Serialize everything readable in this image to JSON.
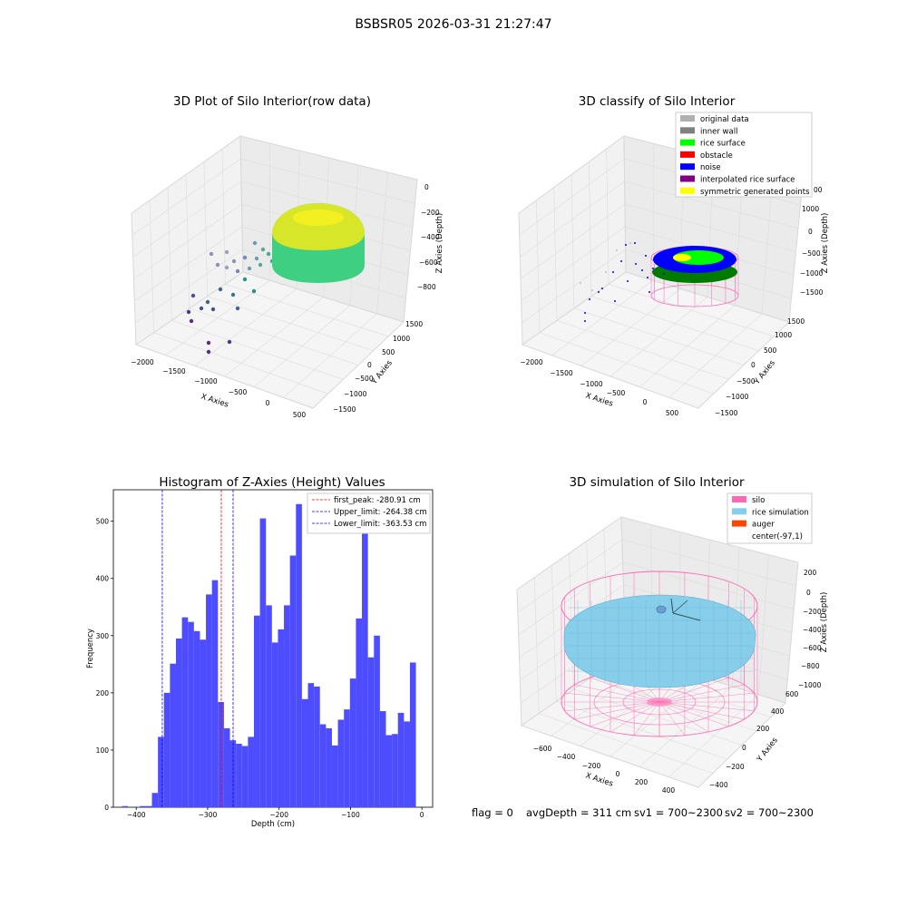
{
  "figure": {
    "suptitle": "BSBSR05 2026-03-31 21:27:47",
    "footer": {
      "flag": "flag = 0",
      "avg_depth": "avgDepth = 311 cm",
      "sv1": "sv1 = 700~2300",
      "sv2": "sv2 = 700~2300"
    }
  },
  "colors": {
    "histogram": "#4d4dff",
    "peak_line": "#ff0000",
    "limit_line": "#0000ff",
    "silo": "#ff69b4",
    "rice_sim": "#87ceeb",
    "auger": "#ff4500",
    "inner_wall": "#808080",
    "original": "#b0b0b0",
    "rice_surface": "#00ff00",
    "obstacle": "#ff0000",
    "noise": "#0000ff",
    "interp": "#800080",
    "symmetric": "#ffff00"
  },
  "chart_data": [
    {
      "type": "scatter",
      "title": "3D Plot of Silo Interior(row data)",
      "xlabel": "X Axies",
      "ylabel": "Y Axies",
      "zlabel": "Z Axies (Depth)",
      "x_ticks": [
        "−2000",
        "−1500",
        "−1000",
        "−500",
        "0",
        "500"
      ],
      "y_ticks": [
        "−1500",
        "−1000",
        "−500",
        "0",
        "500",
        "1000",
        "1500"
      ],
      "z_ticks": [
        "0",
        "−200",
        "−400",
        "−600",
        "−800"
      ]
    },
    {
      "type": "scatter",
      "title": "3D classify of Silo Interior",
      "xlabel": "X Axies",
      "ylabel": "Y Axies",
      "zlabel": "Z Axies (Depth)",
      "x_ticks": [
        "−2000",
        "−1500",
        "−1000",
        "−500",
        "0",
        "500"
      ],
      "y_ticks": [
        "−1500",
        "−1000",
        "−500",
        "0",
        "500",
        "1000",
        "1500"
      ],
      "z_ticks": [
        "1000",
        "500",
        "0",
        "−500",
        "−1000",
        "−1500"
      ],
      "z_tick_partial": "00",
      "legend": [
        {
          "label": "original data",
          "color": "#b0b0b0"
        },
        {
          "label": "inner wall",
          "color": "#808080"
        },
        {
          "label": "rice surface",
          "color": "#00ff00"
        },
        {
          "label": "obstacle",
          "color": "#ff0000"
        },
        {
          "label": "noise",
          "color": "#0000ff"
        },
        {
          "label": "interpolated rice surface",
          "color": "#800080"
        },
        {
          "label": "symmetric generated points",
          "color": "#ffff00"
        }
      ]
    },
    {
      "type": "bar",
      "title": "Histogram of Z-Axies (Height) Values",
      "xlabel": "Depth (cm)",
      "ylabel": "Frequency",
      "xlim": [
        -432,
        15
      ],
      "ylim": [
        0,
        555
      ],
      "x_ticks": [
        -400,
        -300,
        -200,
        -100,
        0
      ],
      "x_tick_labels": [
        "−400",
        "−300",
        "−200",
        "−100",
        "0"
      ],
      "y_ticks": [
        0,
        100,
        200,
        300,
        400,
        500
      ],
      "bin_start": -420,
      "bin_width": 8.4,
      "values": [
        2,
        0,
        1,
        2,
        2,
        25,
        123,
        200,
        251,
        295,
        332,
        324,
        308,
        293,
        372,
        397,
        184,
        138,
        117,
        111,
        107,
        123,
        335,
        505,
        353,
        288,
        311,
        353,
        440,
        530,
        189,
        217,
        211,
        145,
        138,
        108,
        153,
        171,
        225,
        330,
        487,
        262,
        300,
        168,
        126,
        128,
        165,
        150,
        253
      ],
      "vlines": [
        {
          "x": -280.91,
          "label": "first_peak: -280.91 cm",
          "color": "#ff0000"
        },
        {
          "x": -264.38,
          "label": "Upper_limit: -264.38 cm",
          "color": "#0000ff"
        },
        {
          "x": -363.53,
          "label": "Lower_limit: -363.53 cm",
          "color": "#0000ff"
        }
      ],
      "legend_position": "top-right"
    },
    {
      "type": "area",
      "title": "3D simulation of Silo Interior",
      "xlabel": "X Axies",
      "ylabel": "Y Axies",
      "zlabel": "Z Axies (Depth)",
      "x_ticks": [
        "−600",
        "−400",
        "−200",
        "0",
        "200",
        "400"
      ],
      "y_ticks": [
        "−400",
        "−200",
        "0",
        "200",
        "400",
        "600"
      ],
      "z_ticks": [
        "200",
        "0",
        "−200",
        "−400",
        "−600",
        "−800",
        "−1000"
      ],
      "legend": [
        {
          "label": "silo",
          "color": "#ff69b4"
        },
        {
          "label": "rice simulation",
          "color": "#87ceeb"
        },
        {
          "label": "auger",
          "color": "#ff4500"
        },
        {
          "label": "center(-97,1)",
          "color": ""
        }
      ]
    }
  ]
}
